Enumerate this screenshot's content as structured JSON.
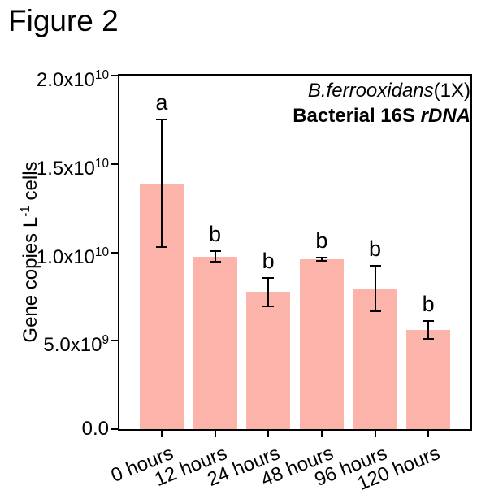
{
  "figure_title": "Figure 2",
  "chart_data": {
    "type": "bar",
    "title": "",
    "categories": [
      "0 hours",
      "12 hours",
      "24 hours",
      "48 hours",
      "96 hours",
      "120 hours"
    ],
    "values": [
      13900000000,
      9750000000,
      7750000000,
      9600000000,
      7950000000,
      5600000000
    ],
    "errors": [
      3600000000,
      300000000,
      800000000,
      100000000,
      1300000000,
      500000000
    ],
    "sig_letters": [
      "a",
      "b",
      "b",
      "b",
      "b",
      "b"
    ],
    "xlabel": "",
    "ylabel": "Gene copies L-1 cells",
    "ylabel_parts": {
      "prefix": "Gene copies L",
      "sup": "-1",
      "suffix": " cells"
    },
    "ylim": [
      0,
      20000000000
    ],
    "yticks": [
      {
        "base": "2.0x10",
        "exp": "10",
        "value": 20000000000
      },
      {
        "base": "1.5x10",
        "exp": "10",
        "value": 15000000000
      },
      {
        "base": "1.0x10",
        "exp": "10",
        "value": 10000000000
      },
      {
        "base": "5.0x10",
        "exp": "9",
        "value": 5000000000
      },
      {
        "base": "0.0",
        "exp": "",
        "value": 0
      }
    ],
    "legend": {
      "line1_italic": "B.ferrooxidans",
      "line1_regular": "(1X)",
      "line2_bold": "Bacterial 16S ",
      "line2_bold_italic": "rDNA",
      "position": "top-right-inside"
    },
    "grid": false,
    "bar_color": "#fcb4aa",
    "error_bar_color": "#000000",
    "axis_color": "#000000",
    "text_color": "#000000"
  }
}
